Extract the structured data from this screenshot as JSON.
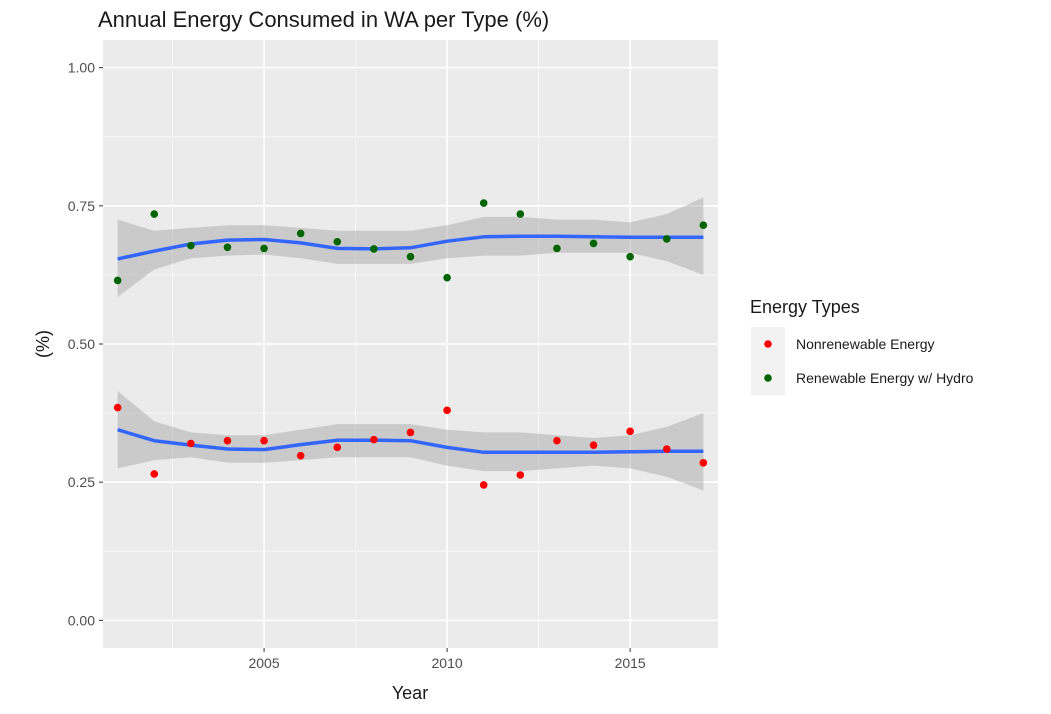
{
  "chart_data": {
    "type": "scatter",
    "title": "Annual Energy Consumed in WA per Type (%)",
    "xlabel": "Year",
    "ylabel": "(%)",
    "xlim": [
      2000.6,
      2017.4
    ],
    "ylim": [
      -0.05,
      1.05
    ],
    "x_ticks": [
      2005,
      2010,
      2015
    ],
    "y_ticks": [
      0.0,
      0.25,
      0.5,
      0.75,
      1.0
    ],
    "x_tick_labels": [
      "2005",
      "2010",
      "2015"
    ],
    "y_tick_labels": [
      "0.00",
      "0.25",
      "0.50",
      "0.75",
      "1.00"
    ],
    "grid": true,
    "legend": {
      "title": "Energy Types",
      "position": "right"
    },
    "x": [
      2001,
      2002,
      2003,
      2004,
      2005,
      2006,
      2007,
      2008,
      2009,
      2010,
      2011,
      2012,
      2013,
      2014,
      2015,
      2016,
      2017
    ],
    "series": [
      {
        "name": "Nonrenewable Energy",
        "color": "#ff0000",
        "values": [
          0.385,
          0.265,
          0.32,
          0.325,
          0.325,
          0.298,
          0.313,
          0.327,
          0.34,
          0.38,
          0.245,
          0.263,
          0.325,
          0.317,
          0.342,
          0.31,
          0.285
        ],
        "smooth": [
          0.345,
          0.325,
          0.317,
          0.31,
          0.309,
          0.318,
          0.326,
          0.326,
          0.325,
          0.313,
          0.304,
          0.304,
          0.304,
          0.304,
          0.305,
          0.306,
          0.306
        ],
        "smooth_lower": [
          0.275,
          0.29,
          0.295,
          0.285,
          0.285,
          0.29,
          0.295,
          0.295,
          0.295,
          0.28,
          0.27,
          0.27,
          0.275,
          0.28,
          0.275,
          0.26,
          0.235
        ],
        "smooth_upper": [
          0.415,
          0.36,
          0.34,
          0.335,
          0.335,
          0.345,
          0.355,
          0.355,
          0.355,
          0.345,
          0.34,
          0.34,
          0.335,
          0.33,
          0.335,
          0.35,
          0.375
        ]
      },
      {
        "name": "Renewable Energy w/ Hydro",
        "color": "#006400",
        "values": [
          0.615,
          0.735,
          0.678,
          0.675,
          0.673,
          0.7,
          0.685,
          0.672,
          0.658,
          0.62,
          0.755,
          0.735,
          0.673,
          0.682,
          0.658,
          0.69,
          0.715
        ],
        "smooth": [
          0.654,
          0.668,
          0.681,
          0.688,
          0.689,
          0.683,
          0.673,
          0.672,
          0.674,
          0.686,
          0.694,
          0.695,
          0.695,
          0.694,
          0.693,
          0.693,
          0.693
        ],
        "smooth_lower": [
          0.585,
          0.635,
          0.655,
          0.66,
          0.662,
          0.655,
          0.645,
          0.645,
          0.645,
          0.655,
          0.66,
          0.66,
          0.665,
          0.665,
          0.665,
          0.65,
          0.625
        ],
        "smooth_upper": [
          0.725,
          0.705,
          0.71,
          0.715,
          0.715,
          0.71,
          0.705,
          0.705,
          0.705,
          0.715,
          0.73,
          0.73,
          0.725,
          0.725,
          0.72,
          0.735,
          0.765
        ]
      }
    ]
  }
}
